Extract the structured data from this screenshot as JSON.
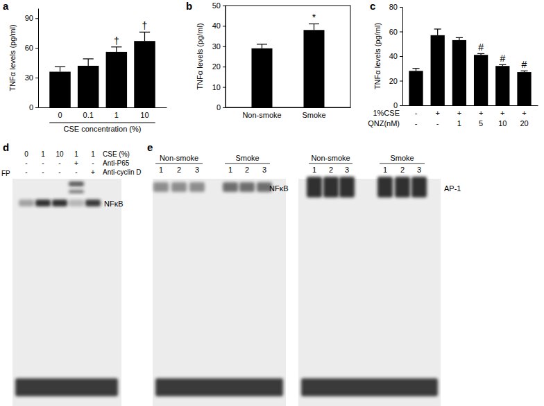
{
  "chart_data": [
    {
      "type": "bar",
      "title": "a",
      "y_label": "TNFα levels (pg/ml)",
      "x_label": "CSE concentration (%)",
      "categories": [
        "0",
        "0.1",
        "1",
        "10"
      ],
      "values": [
        36,
        42,
        56,
        67
      ],
      "errors": [
        5,
        7,
        5,
        9
      ],
      "color": "#000000",
      "ylim": [
        0,
        100
      ],
      "yticks": [
        0,
        30,
        60,
        90
      ],
      "annotations": [
        {
          "index": 2,
          "text": "†"
        },
        {
          "index": 3,
          "text": "†"
        }
      ]
    },
    {
      "type": "bar",
      "title": "b",
      "y_label": "TNFα levels (pg/ml)",
      "categories": [
        "Non-smoke",
        "Smoke"
      ],
      "values": [
        29,
        38
      ],
      "errors": [
        2,
        3
      ],
      "color": "#000000",
      "ylim": [
        0,
        50
      ],
      "yticks": [
        0,
        10,
        20,
        30,
        40,
        50
      ],
      "annotations": [
        {
          "index": 1,
          "text": "*"
        }
      ]
    },
    {
      "type": "bar",
      "title": "c",
      "y_label": "TNFα levels (pg/ml)",
      "categories": [
        null,
        null,
        null,
        null,
        null,
        null
      ],
      "values": [
        28,
        57,
        53,
        41,
        32,
        27
      ],
      "errors": [
        2,
        5,
        2,
        1,
        1,
        1
      ],
      "color": "#000000",
      "ylim": [
        0,
        80
      ],
      "yticks": [
        0,
        20,
        40,
        60,
        80
      ],
      "annotations": [
        {
          "index": 3,
          "text": "#"
        },
        {
          "index": 4,
          "text": "#"
        },
        {
          "index": 5,
          "text": "#"
        }
      ],
      "x_table": {
        "rows": [
          {
            "label": "1%CSE",
            "cells": [
              "-",
              "+",
              "+",
              "+",
              "+",
              "+"
            ]
          },
          {
            "label": "QNZ(nM)",
            "cells": [
              "-",
              "-",
              "1",
              "5",
              "10",
              "20"
            ]
          }
        ]
      }
    }
  ],
  "gels": [
    {
      "title": "d",
      "header_rows": [
        {
          "label": "CSE (%)",
          "cells": [
            "0",
            "1",
            "10",
            "1",
            "1"
          ]
        },
        {
          "label": "Anti-P65",
          "cells": [
            "-",
            "-",
            "-",
            "+",
            "-"
          ]
        },
        {
          "label": "Anti-cyclin D",
          "cells": [
            "-",
            "-",
            "-",
            "-",
            "+"
          ]
        }
      ],
      "side_label": "FP",
      "band_label": "NFκB"
    },
    {
      "title": "e",
      "blots": [
        {
          "groups": [
            "Non-smoke",
            "Smoke"
          ],
          "lanes": [
            "1",
            "2",
            "3",
            "1",
            "2",
            "3"
          ],
          "band_label": "NFκB"
        },
        {
          "groups": [
            "Non-smoke",
            "Smoke"
          ],
          "lanes": [
            "1",
            "2",
            "3",
            "1",
            "2",
            "3"
          ],
          "band_label": "AP-1"
        }
      ]
    }
  ]
}
